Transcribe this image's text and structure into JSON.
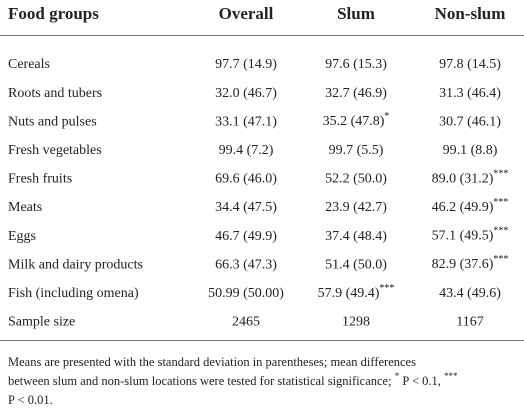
{
  "table": {
    "header": [
      "Food groups",
      "Overall",
      "Slum",
      "Non-slum"
    ],
    "rows": [
      [
        "Cereals",
        "97.7 (14.9)",
        "97.6 (15.3)",
        "97.8 (14.5)"
      ],
      [
        "Roots and tubers",
        "32.0 (46.7)",
        "32.7 (46.9)",
        "31.3 (46.4)"
      ],
      [
        "Nuts and pulses",
        "33.1 (47.1)",
        {
          "text": "35.2 (47.8)",
          "sup": "*"
        },
        "30.7 (46.1)"
      ],
      [
        "Fresh vegetables",
        "99.4 (7.2)",
        "99.7 (5.5)",
        "99.1 (8.8)"
      ],
      [
        "Fresh fruits",
        "69.6 (46.0)",
        "52.2 (50.0)",
        {
          "text": "89.0 (31.2)",
          "sup": "***"
        }
      ],
      [
        "Meats",
        "34.4 (47.5)",
        "23.9 (42.7)",
        {
          "text": "46.2 (49.9)",
          "sup": "***"
        }
      ],
      [
        "Eggs",
        "46.7 (49.9)",
        "37.4 (48.4)",
        {
          "text": "57.1 (49.5)",
          "sup": "***"
        }
      ],
      [
        "Milk and dairy products",
        "66.3 (47.3)",
        "51.4 (50.0)",
        {
          "text": "82.9 (37.6)",
          "sup": "***"
        }
      ],
      [
        "Fish (including omena)",
        "50.99 (50.00)",
        {
          "text": "57.9 (49.4)",
          "sup": "***"
        },
        "43.4 (49.6)"
      ],
      [
        "Sample size",
        "2465",
        "1298",
        "1167"
      ]
    ]
  },
  "footnote": [
    [
      "Means are presented with the standard deviation in parentheses; mean differences"
    ],
    [
      "between slum and non-slum locations were tested for statistical significance; ",
      {
        "sup": "*"
      },
      " P < 0.1, ",
      {
        "sup": "***"
      }
    ],
    [
      "P < 0.01."
    ]
  ]
}
